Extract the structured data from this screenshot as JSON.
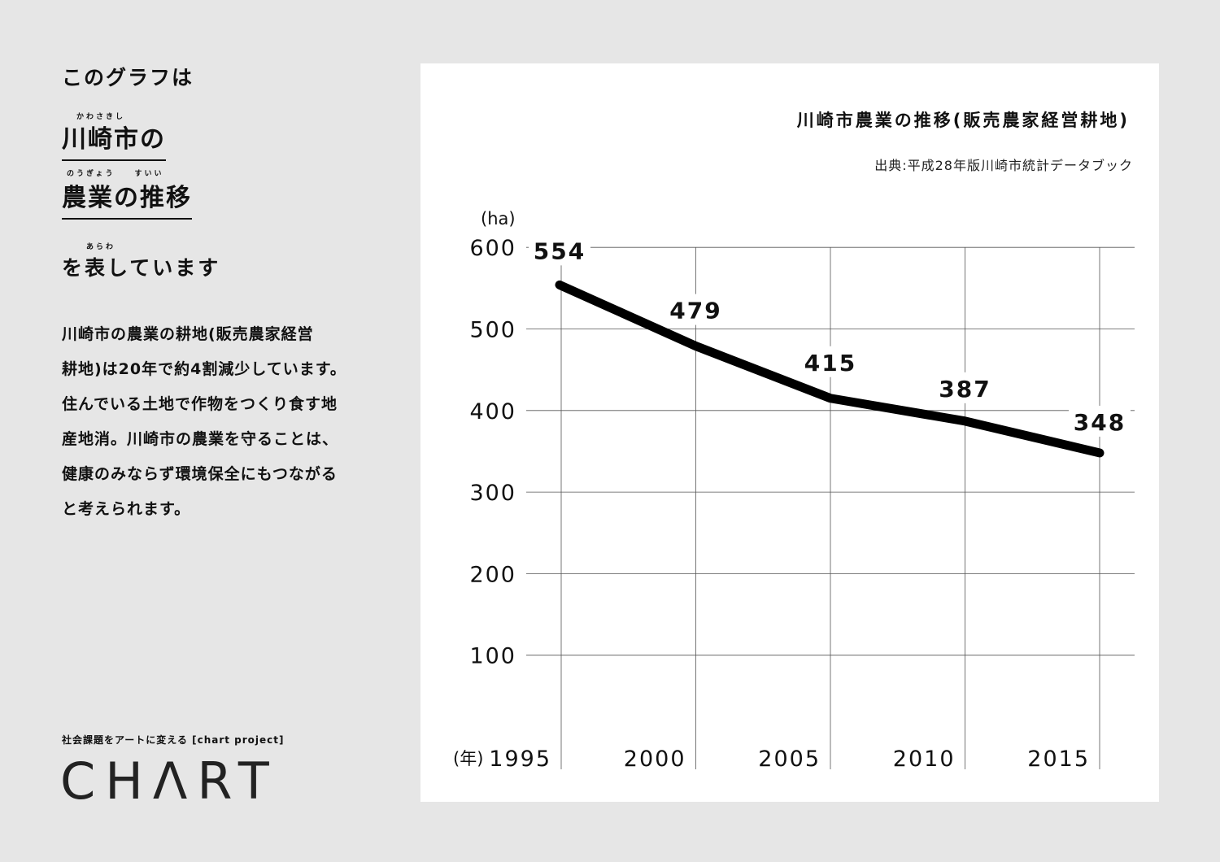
{
  "intro": {
    "line1": "このグラフは",
    "headline1": "川崎市の",
    "headline1_ruby": "かわさきし",
    "headline2": "農業の推移",
    "headline2_ruby": "のうぎょう　　すいい",
    "line_end": "を表しています",
    "line_end_ruby": "あらわ"
  },
  "description": [
    "川崎市の農業の耕地(販売農家経営",
    "耕地)は20年で約4割減少しています。",
    "住んでいる土地で作物をつくり食す地",
    "産地消。川崎市の農業を守ることは、",
    "健康のみならず環境保全にもつながる",
    "と考えられます。"
  ],
  "footer": {
    "project_label": "社会課題をアートに変える [chart project]",
    "logo": "CHΛRT"
  },
  "chart_data": {
    "type": "line",
    "title": "川崎市農業の推移(販売農家経営耕地)",
    "source": "出典:平成28年版川崎市統計データブック",
    "ylabel": "(ha)",
    "xlabel": "(年)",
    "x": [
      1995,
      2000,
      2005,
      2010,
      2015
    ],
    "x_tick_labels": [
      "1995",
      "2000",
      "2005",
      "2010",
      "2015"
    ],
    "y_ticks": [
      100,
      200,
      300,
      400,
      500,
      600
    ],
    "y_tick_labels": [
      "100",
      "200",
      "300",
      "400",
      "500",
      "600"
    ],
    "ylim": [
      0,
      600
    ],
    "series": [
      {
        "values": [
          554,
          479,
          415,
          387,
          348
        ],
        "labels": [
          "554",
          "479",
          "415",
          "387",
          "348"
        ],
        "color": "#000000"
      }
    ],
    "grid": true
  }
}
